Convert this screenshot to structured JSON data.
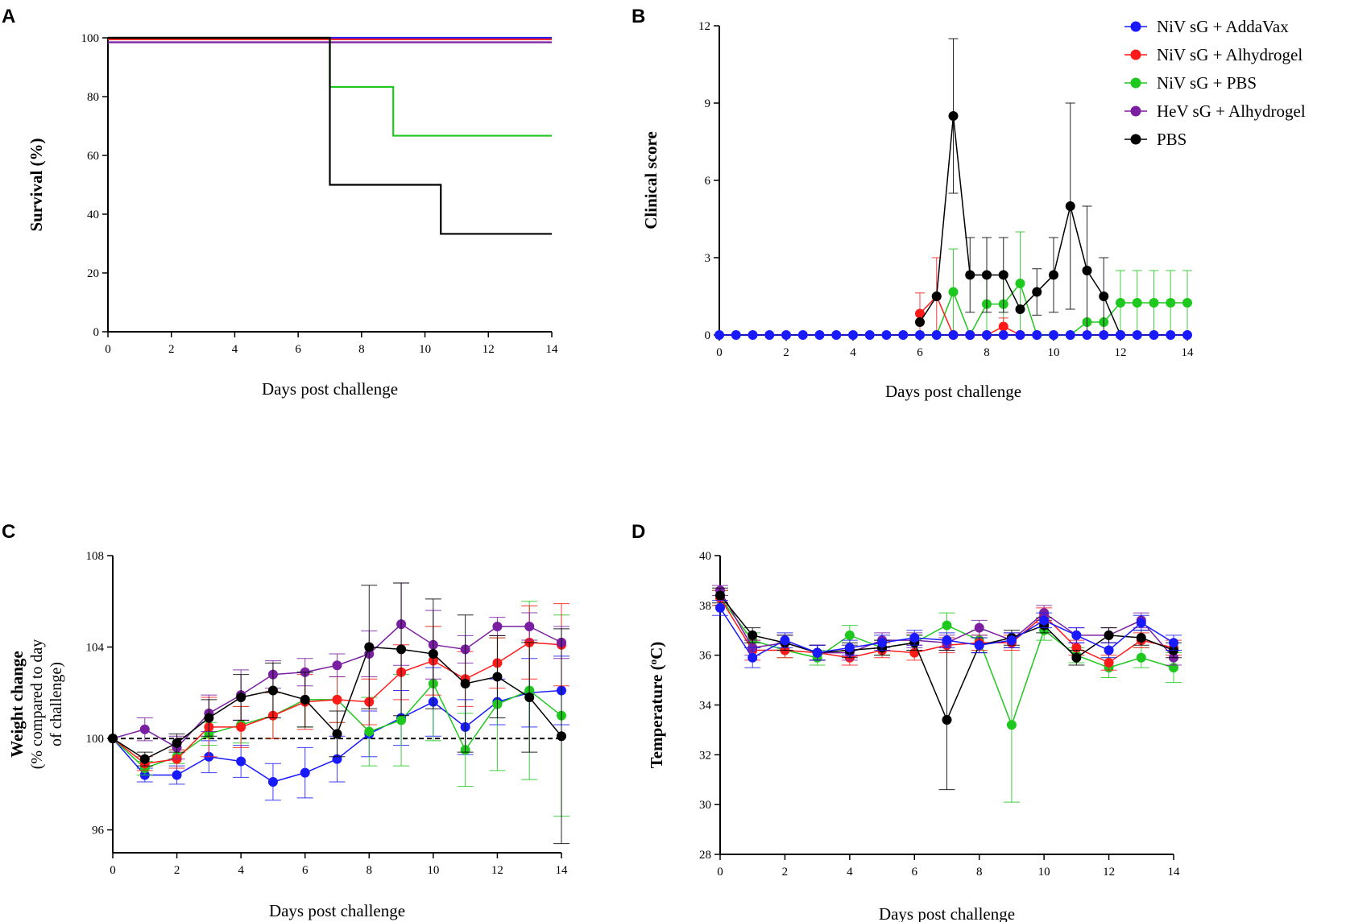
{
  "legend": {
    "entries": [
      {
        "key": "addavax",
        "label": "NiV sG + AddaVax",
        "color": "#1a1aff"
      },
      {
        "key": "alhydrogel",
        "label": "NiV sG + Alhydrogel",
        "color": "#ff1a1a"
      },
      {
        "key": "pbs_niv",
        "label": "NiV sG + PBS",
        "color": "#1ec81e"
      },
      {
        "key": "hev",
        "label": "HeV sG + Alhydrogel",
        "color": "#7a1fa2"
      },
      {
        "key": "pbs",
        "label": "PBS",
        "color": "#000000"
      }
    ]
  },
  "chart_data": [
    {
      "panel": "A",
      "type": "line",
      "step": true,
      "xlabel": "Days post challenge",
      "ylabel": "Survival (%)",
      "xlim": [
        0,
        14
      ],
      "ylim": [
        0,
        100
      ],
      "xticks": [
        0,
        2,
        4,
        6,
        8,
        10,
        12,
        14
      ],
      "yticks": [
        0,
        20,
        40,
        60,
        80,
        100
      ],
      "series": [
        {
          "key": "addavax",
          "points": [
            [
              0,
              100
            ],
            [
              14,
              100
            ]
          ]
        },
        {
          "key": "alhydrogel",
          "points": [
            [
              0,
              99.5
            ],
            [
              14,
              99.5
            ]
          ]
        },
        {
          "key": "hev",
          "points": [
            [
              0,
              98.5
            ],
            [
              14,
              98.5
            ]
          ]
        },
        {
          "key": "pbs_niv",
          "points": [
            [
              0,
              100
            ],
            [
              7,
              100
            ],
            [
              7,
              83.3
            ],
            [
              9,
              83.3
            ],
            [
              9,
              66.7
            ],
            [
              14,
              66.7
            ]
          ]
        },
        {
          "key": "pbs",
          "points": [
            [
              0,
              100
            ],
            [
              7,
              100
            ],
            [
              7,
              50
            ],
            [
              10.5,
              50
            ],
            [
              10.5,
              33.3
            ],
            [
              14,
              33.3
            ]
          ]
        }
      ]
    },
    {
      "panel": "B",
      "type": "line",
      "xlabel": "Days post challenge",
      "ylabel": "Clinical score",
      "xlim": [
        0,
        14
      ],
      "ylim": [
        0,
        12
      ],
      "xticks": [
        0,
        2,
        4,
        6,
        8,
        10,
        12,
        14
      ],
      "yticks": [
        0,
        3,
        6,
        9,
        12
      ],
      "series": [
        {
          "key": "pbs_niv",
          "x": [
            6,
            6.5,
            7,
            7.5,
            8,
            8.5,
            9,
            9.5,
            10,
            10.5,
            11,
            11.5,
            12,
            12.5,
            13,
            13.5,
            14
          ],
          "y": [
            0,
            0,
            1.67,
            0,
            1.2,
            1.2,
            2,
            0,
            0,
            0,
            0.5,
            0.5,
            1.25,
            1.25,
            1.25,
            1.25,
            1.25
          ],
          "err": [
            0,
            0,
            1.67,
            0,
            1.2,
            1.2,
            2,
            0,
            0,
            0,
            0,
            0,
            1.25,
            1.25,
            1.25,
            1.25,
            1.25
          ]
        },
        {
          "key": "alhydrogel",
          "x": [
            6,
            6.5,
            7,
            7.5,
            8,
            8.5,
            9
          ],
          "y": [
            0.83,
            1.5,
            0,
            0,
            0,
            0.33,
            0
          ],
          "err": [
            0.8,
            1.5,
            0,
            0,
            0,
            0.33,
            0
          ]
        },
        {
          "key": "pbs",
          "x": [
            6,
            6.5,
            7,
            7.5,
            8,
            8.5,
            9,
            9.5,
            10,
            10.5,
            11,
            11.5,
            12
          ],
          "y": [
            0.5,
            1.5,
            8.5,
            2.33,
            2.33,
            2.33,
            1,
            1.67,
            2.33,
            5,
            2.5,
            1.5,
            0
          ],
          "err": [
            0,
            0,
            3,
            1.45,
            1.45,
            1.45,
            0,
            0.9,
            1.45,
            4,
            2.5,
            1.5,
            0
          ]
        },
        {
          "key": "addavax",
          "x": [
            0,
            0.5,
            1,
            1.5,
            2,
            2.5,
            3,
            3.5,
            4,
            4.5,
            5,
            5.5,
            6,
            6.5,
            7,
            7.5,
            8,
            8.5,
            9,
            9.5,
            10,
            10.5,
            11,
            11.5,
            12,
            12.5,
            13,
            13.5,
            14
          ],
          "y": [
            0,
            0,
            0,
            0,
            0,
            0,
            0,
            0,
            0,
            0,
            0,
            0,
            0,
            0,
            0,
            0,
            0,
            0,
            0,
            0,
            0,
            0,
            0,
            0,
            0,
            0,
            0,
            0,
            0
          ],
          "err": null
        }
      ]
    },
    {
      "panel": "C",
      "type": "line",
      "xlabel": "Days post challenge",
      "ylabel": "Weight change",
      "ylabel_sub1": "(% compared to day",
      "ylabel_sub2": "of challenge)",
      "xlim": [
        0,
        14
      ],
      "ylim": [
        95,
        108
      ],
      "xticks": [
        0,
        2,
        4,
        6,
        8,
        10,
        12,
        14
      ],
      "yticks": [
        96,
        100,
        104,
        108
      ],
      "reference_line": 100,
      "series": [
        {
          "key": "addavax",
          "x": [
            0,
            1,
            2,
            3,
            4,
            5,
            6,
            7,
            8,
            9,
            10,
            11,
            12,
            13,
            14
          ],
          "y": [
            100,
            98.4,
            98.4,
            99.2,
            99,
            98.1,
            98.5,
            99.1,
            100.2,
            100.9,
            101.6,
            100.5,
            101.6,
            102,
            102.1
          ],
          "err": [
            0,
            0.3,
            0.4,
            0.7,
            0.7,
            0.8,
            1.1,
            1,
            1,
            1.2,
            1.5,
            1.2,
            1,
            1.5,
            1.5
          ]
        },
        {
          "key": "pbs_niv",
          "x": [
            0,
            1,
            2,
            3,
            4,
            5,
            6,
            7,
            8,
            9,
            10,
            11,
            12,
            13,
            14
          ],
          "y": [
            100,
            98.7,
            99.2,
            100.2,
            100.6,
            101,
            101.7,
            101.7,
            100.3,
            100.8,
            102.4,
            99.5,
            101.5,
            102.1,
            101
          ],
          "err": [
            0,
            0.3,
            0.3,
            0.5,
            0.8,
            1,
            1.2,
            1,
            1.5,
            2,
            2.5,
            1.6,
            2.9,
            3.9,
            4.4
          ]
        },
        {
          "key": "alhydrogel",
          "x": [
            0,
            1,
            2,
            3,
            4,
            5,
            6,
            7,
            8,
            9,
            10,
            11,
            12,
            13,
            14
          ],
          "y": [
            100,
            98.9,
            99.1,
            100.5,
            100.5,
            101,
            101.6,
            101.7,
            101.6,
            102.9,
            103.4,
            102.6,
            103.3,
            104.2,
            104.1
          ],
          "err": [
            0,
            0.3,
            0.4,
            1.3,
            0.9,
            1,
            1.2,
            1,
            1,
            1.2,
            1.5,
            1.2,
            1.1,
            1.6,
            1.8
          ]
        },
        {
          "key": "hev",
          "x": [
            0,
            1,
            2,
            3,
            4,
            5,
            6,
            7,
            8,
            9,
            10,
            11,
            12,
            13,
            14
          ],
          "y": [
            100,
            100.4,
            99.6,
            101.1,
            101.9,
            102.8,
            102.9,
            103.2,
            103.7,
            105,
            104.1,
            103.9,
            104.9,
            104.9,
            104.2
          ],
          "err": [
            0,
            0.5,
            0.5,
            0.8,
            1.1,
            0.6,
            0.6,
            0.5,
            1,
            1.8,
            1.5,
            0.6,
            0.4,
            0.6,
            0.7
          ]
        },
        {
          "key": "pbs",
          "x": [
            0,
            1,
            2,
            3,
            4,
            5,
            6,
            7,
            8,
            9,
            10,
            11,
            12,
            13,
            14
          ],
          "y": [
            100,
            99.1,
            99.8,
            100.9,
            101.8,
            102.1,
            101.7,
            100.2,
            104,
            103.9,
            103.7,
            102.4,
            102.7,
            101.8,
            100.1
          ],
          "err": [
            0,
            0.3,
            0.4,
            0.8,
            1,
            1.2,
            1.2,
            1,
            2.7,
            2.9,
            2.4,
            3,
            1.8,
            2.4,
            4.7
          ]
        }
      ]
    },
    {
      "panel": "D",
      "type": "line",
      "xlabel": "Days post challenge",
      "ylabel": "Temperature (",
      "ylabel_sup": "o",
      "ylabel_end": "C)",
      "xlim": [
        0,
        14
      ],
      "ylim": [
        28,
        40
      ],
      "xticks": [
        0,
        2,
        4,
        6,
        8,
        10,
        12,
        14
      ],
      "yticks": [
        28,
        30,
        32,
        34,
        36,
        38,
        40
      ],
      "series": [
        {
          "key": "pbs_niv",
          "x": [
            0,
            1,
            2,
            3,
            4,
            5,
            6,
            7,
            8,
            9,
            10,
            11,
            12,
            13,
            14
          ],
          "y": [
            38.3,
            36.6,
            36.2,
            35.9,
            36.8,
            36.3,
            36.5,
            37.2,
            36.6,
            33.2,
            37,
            36,
            35.5,
            35.9,
            35.5
          ],
          "err": [
            0.3,
            0.3,
            0.3,
            0.3,
            0.4,
            0.3,
            0.3,
            0.5,
            0.4,
            3.1,
            0.4,
            0.3,
            0.4,
            0.4,
            0.6
          ]
        },
        {
          "key": "alhydrogel",
          "x": [
            0,
            1,
            2,
            3,
            4,
            5,
            6,
            7,
            8,
            9,
            10,
            11,
            12,
            13,
            14
          ],
          "y": [
            38.3,
            36.2,
            36.2,
            36.1,
            35.9,
            36.2,
            36.1,
            36.4,
            36.5,
            36.5,
            37.6,
            36.3,
            35.7,
            36.6,
            36.3
          ],
          "err": [
            0.3,
            0.4,
            0.3,
            0.3,
            0.3,
            0.3,
            0.3,
            0.3,
            0.3,
            0.3,
            0.3,
            0.3,
            0.3,
            0.3,
            0.3
          ]
        },
        {
          "key": "hev",
          "x": [
            0,
            1,
            2,
            3,
            4,
            5,
            6,
            7,
            8,
            9,
            10,
            11,
            12,
            13,
            14
          ],
          "y": [
            38.6,
            36.3,
            36.5,
            36.1,
            36.1,
            36.6,
            36.6,
            36.5,
            37.1,
            36.6,
            37.7,
            36.8,
            36.8,
            37.4,
            35.9
          ],
          "err": [
            0.2,
            0.3,
            0.3,
            0.3,
            0.3,
            0.3,
            0.3,
            0.3,
            0.3,
            0.3,
            0.3,
            0.3,
            0.3,
            0.3,
            0.3
          ]
        },
        {
          "key": "pbs",
          "x": [
            0,
            1,
            2,
            3,
            4,
            5,
            6,
            7,
            8,
            9,
            10,
            11,
            12,
            13,
            14
          ],
          "y": [
            38.4,
            36.8,
            36.5,
            36.1,
            36.2,
            36.3,
            36.5,
            33.4,
            36.4,
            36.7,
            37.2,
            35.9,
            36.8,
            36.7,
            36.2
          ],
          "err": [
            0.3,
            0.3,
            0.3,
            0.3,
            0.3,
            0.3,
            0.3,
            2.8,
            0.3,
            0.3,
            0.3,
            0.3,
            0.3,
            0.3,
            0.3
          ]
        },
        {
          "key": "addavax",
          "x": [
            0,
            1,
            2,
            3,
            4,
            5,
            6,
            7,
            8,
            9,
            10,
            11,
            12,
            13,
            14
          ],
          "y": [
            37.9,
            35.9,
            36.6,
            36.1,
            36.3,
            36.5,
            36.7,
            36.6,
            36.4,
            36.6,
            37.4,
            36.8,
            36.2,
            37.3,
            36.5
          ],
          "err": [
            0.3,
            0.4,
            0.3,
            0.3,
            0.3,
            0.3,
            0.3,
            0.3,
            0.3,
            0.3,
            0.3,
            0.3,
            0.3,
            0.3,
            0.3
          ]
        }
      ]
    }
  ]
}
